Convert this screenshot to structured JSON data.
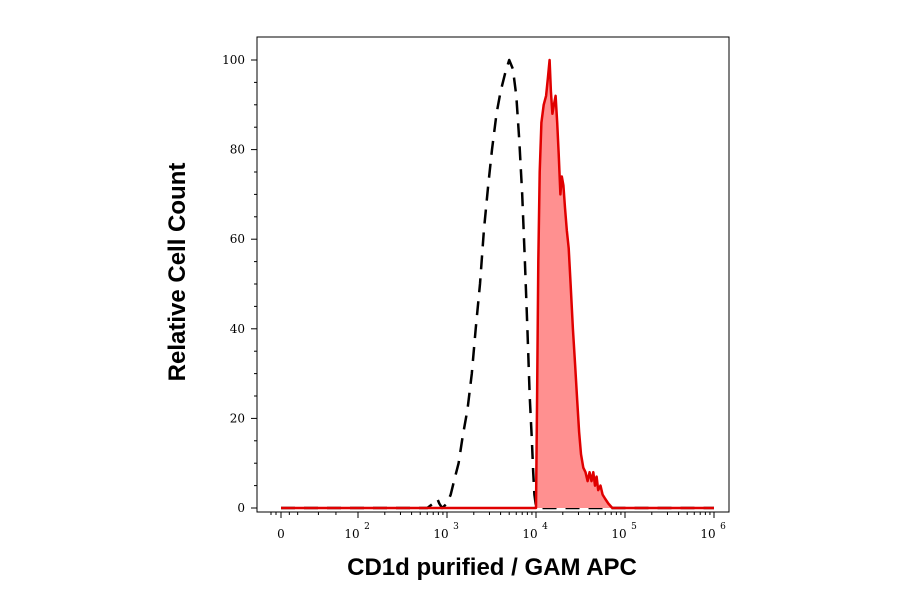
{
  "chart_data": {
    "type": "area",
    "xlabel": "CD1d purified / GAM APC",
    "ylabel": "Relative Cell Count",
    "x_scale": "biexponential",
    "xlim": [
      -30,
      1000000
    ],
    "ylim": [
      0,
      100
    ],
    "x_ticks": [
      {
        "value": 0,
        "base": "0",
        "exp": ""
      },
      {
        "value": 100,
        "base": "10",
        "exp": "2"
      },
      {
        "value": 1000,
        "base": "10",
        "exp": "3"
      },
      {
        "value": 10000,
        "base": "10",
        "exp": "4"
      },
      {
        "value": 100000,
        "base": "10",
        "exp": "5"
      },
      {
        "value": 1000000,
        "base": "10",
        "exp": "6"
      }
    ],
    "y_ticks": [
      0,
      20,
      40,
      60,
      80,
      100
    ],
    "grid": false,
    "series": [
      {
        "style": "dashed-line",
        "color": "#000000",
        "points": [
          [
            0,
            0
          ],
          [
            300,
            0
          ],
          [
            600,
            0
          ],
          [
            700,
            1
          ],
          [
            780,
            2
          ],
          [
            820,
            1
          ],
          [
            880,
            0
          ],
          [
            1000,
            1
          ],
          [
            1100,
            3
          ],
          [
            1200,
            6
          ],
          [
            1350,
            10
          ],
          [
            1500,
            16
          ],
          [
            1700,
            22
          ],
          [
            1900,
            30
          ],
          [
            2100,
            40
          ],
          [
            2350,
            50
          ],
          [
            2600,
            62
          ],
          [
            2900,
            72
          ],
          [
            3200,
            80
          ],
          [
            3600,
            88
          ],
          [
            4000,
            93
          ],
          [
            4500,
            97
          ],
          [
            5000,
            100
          ],
          [
            5500,
            98
          ],
          [
            6000,
            92
          ],
          [
            6500,
            82
          ],
          [
            7000,
            70
          ],
          [
            7500,
            55
          ],
          [
            8000,
            40
          ],
          [
            8500,
            25
          ],
          [
            9000,
            15
          ],
          [
            9300,
            8
          ],
          [
            9600,
            3
          ],
          [
            9900,
            1
          ],
          [
            10200,
            0
          ],
          [
            20000,
            0
          ],
          [
            1000000,
            0
          ]
        ]
      },
      {
        "style": "filled",
        "color": "#e00000",
        "fill": "#ff9090",
        "points": [
          [
            0,
            0
          ],
          [
            9500,
            0
          ],
          [
            10000,
            0
          ],
          [
            10300,
            25
          ],
          [
            10600,
            55
          ],
          [
            11000,
            75
          ],
          [
            11500,
            86
          ],
          [
            12200,
            90
          ],
          [
            13000,
            92
          ],
          [
            13600,
            96
          ],
          [
            14200,
            100
          ],
          [
            14700,
            93
          ],
          [
            15300,
            88
          ],
          [
            15900,
            90
          ],
          [
            16600,
            92
          ],
          [
            17300,
            86
          ],
          [
            18000,
            79
          ],
          [
            18800,
            70
          ],
          [
            19500,
            74
          ],
          [
            20300,
            72
          ],
          [
            21200,
            67
          ],
          [
            22200,
            62
          ],
          [
            23300,
            58
          ],
          [
            24500,
            50
          ],
          [
            26000,
            40
          ],
          [
            27500,
            32
          ],
          [
            29000,
            24
          ],
          [
            30500,
            17
          ],
          [
            32000,
            12
          ],
          [
            34000,
            9
          ],
          [
            36000,
            8
          ],
          [
            38000,
            6
          ],
          [
            40000,
            8
          ],
          [
            42000,
            6
          ],
          [
            44000,
            8
          ],
          [
            46000,
            5
          ],
          [
            48000,
            7
          ],
          [
            50000,
            4
          ],
          [
            53000,
            5
          ],
          [
            56000,
            3
          ],
          [
            60000,
            2
          ],
          [
            65000,
            1
          ],
          [
            72000,
            0
          ],
          [
            1000000,
            0
          ]
        ]
      }
    ]
  }
}
